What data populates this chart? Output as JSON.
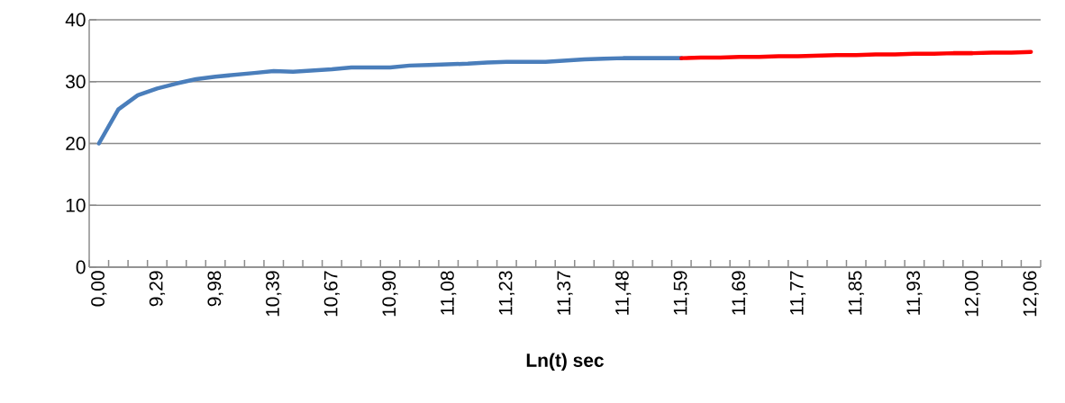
{
  "chart_data": {
    "type": "line",
    "xlabel": "Ln(t) sec",
    "categories": [
      "0,00",
      null,
      null,
      "9,29",
      null,
      null,
      "9,98",
      null,
      null,
      "10,39",
      null,
      null,
      "10,67",
      null,
      null,
      "10,90",
      null,
      null,
      "11,08",
      null,
      null,
      "11,23",
      null,
      null,
      "11,37",
      null,
      null,
      "11,48",
      null,
      null,
      "11,59",
      null,
      null,
      "11,69",
      null,
      null,
      "11,77",
      null,
      null,
      "11,85",
      null,
      null,
      "11,93",
      null,
      null,
      "12,00",
      null,
      null,
      "12,06"
    ],
    "series": [
      {
        "color": "#4a7ebb",
        "values": [
          20,
          25.5,
          27.8,
          28.9,
          29.7,
          30.4,
          30.8,
          31.1,
          31.4,
          31.7,
          31.6,
          31.8,
          32.0,
          32.3,
          32.3,
          32.3,
          32.6,
          32.7,
          32.8,
          32.9,
          33.1,
          33.2,
          33.2,
          33.2,
          33.4,
          33.6,
          33.7,
          33.8,
          33.8,
          33.8,
          33.8,
          null,
          null,
          null,
          null,
          null,
          null,
          null,
          null,
          null,
          null,
          null,
          null,
          null,
          null,
          null,
          null,
          null,
          null
        ]
      },
      {
        "color": "#ff0000",
        "values": [
          null,
          null,
          null,
          null,
          null,
          null,
          null,
          null,
          null,
          null,
          null,
          null,
          null,
          null,
          null,
          null,
          null,
          null,
          null,
          null,
          null,
          null,
          null,
          null,
          null,
          null,
          null,
          null,
          null,
          null,
          33.8,
          33.9,
          33.9,
          34.0,
          34.0,
          34.1,
          34.1,
          34.2,
          34.3,
          34.3,
          34.4,
          34.4,
          34.5,
          34.5,
          34.6,
          34.6,
          34.7,
          34.7,
          34.8
        ]
      }
    ],
    "ylim": [
      0,
      40
    ],
    "yticks": [
      0,
      10,
      20,
      30,
      40
    ],
    "grid": "y"
  }
}
